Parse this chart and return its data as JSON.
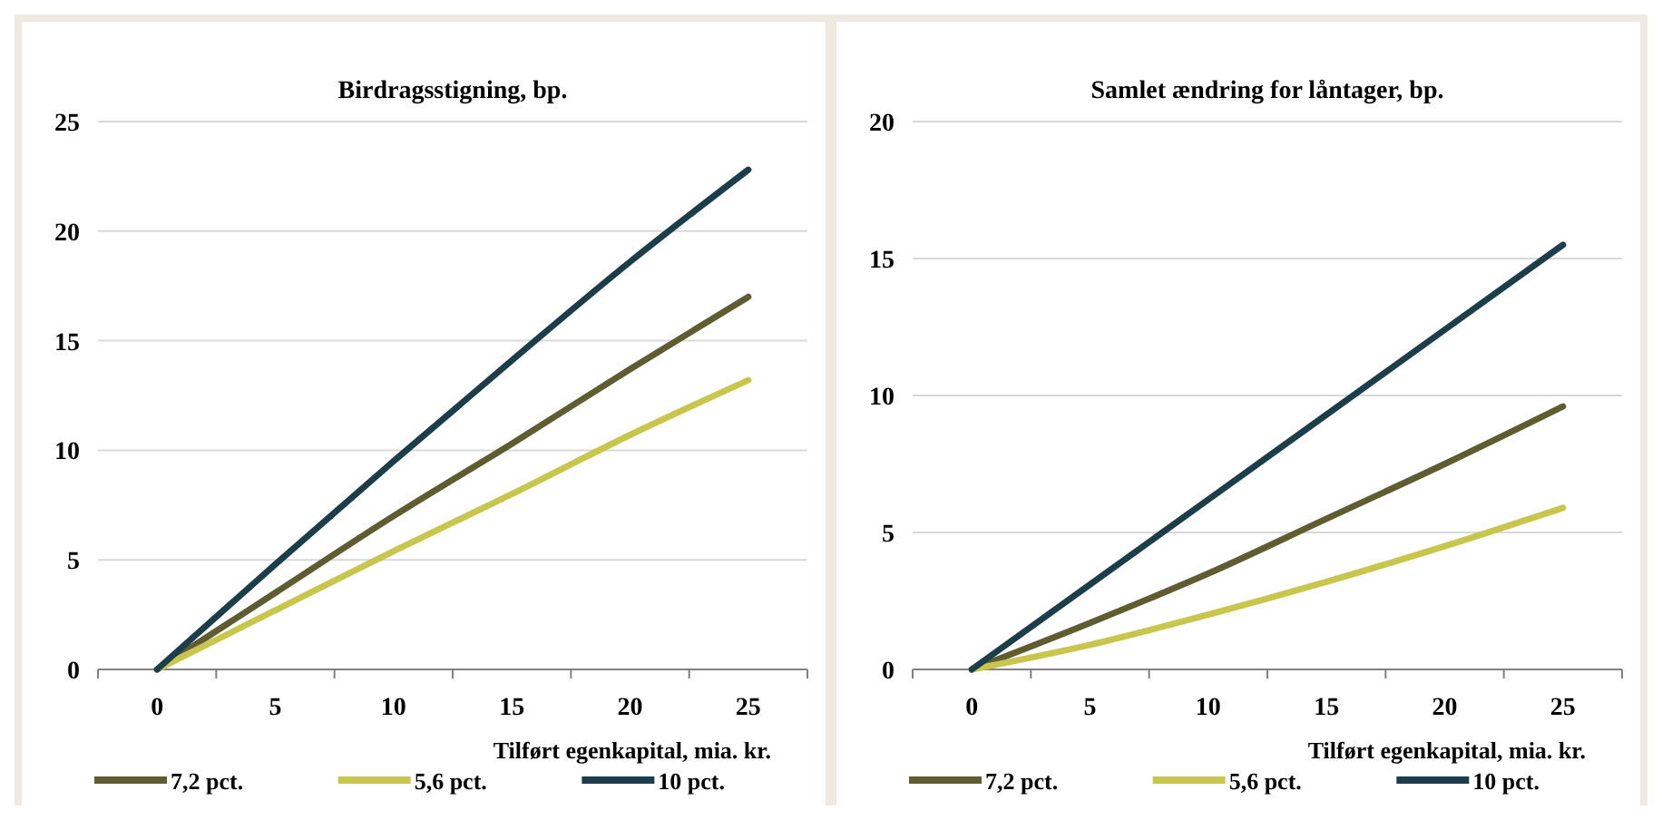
{
  "chart_data": [
    {
      "type": "line",
      "title": "Birdragsstigning,  bp.",
      "xlabel": "Tilført egenkapital, mia. kr.",
      "categories": [
        "0",
        "5",
        "10",
        "15",
        "20",
        "25"
      ],
      "ylim": [
        0,
        25
      ],
      "yticks": [
        0,
        5,
        10,
        15,
        20,
        25
      ],
      "grid": "y",
      "legend": "bottom",
      "series": [
        {
          "name": "7,2 pct.",
          "color": "#5f5c32",
          "values": [
            0,
            3.5,
            7.0,
            10.3,
            13.7,
            17.0
          ]
        },
        {
          "name": "5,6 pct.",
          "color": "#c9c64e",
          "values": [
            0,
            2.7,
            5.4,
            8.0,
            10.7,
            13.2
          ]
        },
        {
          "name": "10 pct.",
          "color": "#1b3e4a",
          "values": [
            0,
            4.8,
            9.5,
            14.1,
            18.6,
            22.8
          ]
        }
      ]
    },
    {
      "type": "line",
      "title": "Samlet ændring  for låntager, bp.",
      "xlabel": "Tilført egenkapital, mia. kr.",
      "categories": [
        "0",
        "5",
        "10",
        "15",
        "20",
        "25"
      ],
      "ylim": [
        0,
        20
      ],
      "yticks": [
        0,
        5,
        10,
        15,
        20
      ],
      "grid": "y",
      "legend": "bottom",
      "series": [
        {
          "name": "7,2 pct.",
          "color": "#5f5c32",
          "values": [
            0,
            1.7,
            3.5,
            5.5,
            7.5,
            9.6
          ]
        },
        {
          "name": "5,6 pct.",
          "color": "#c9c64e",
          "values": [
            0,
            0.9,
            2.0,
            3.2,
            4.5,
            5.9
          ]
        },
        {
          "name": "10 pct.",
          "color": "#1b3e4a",
          "values": [
            0,
            3.1,
            6.2,
            9.3,
            12.4,
            15.5
          ]
        }
      ]
    }
  ]
}
